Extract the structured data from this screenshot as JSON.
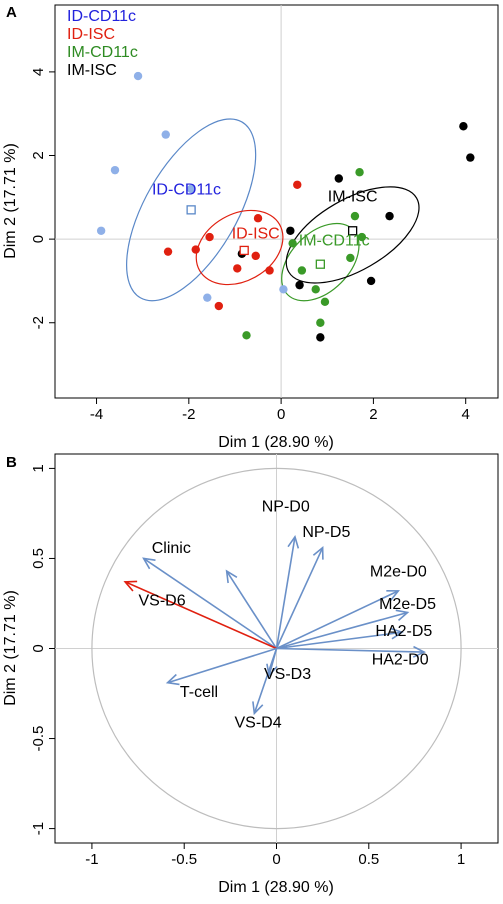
{
  "chart_data": [
    {
      "panel_label": "A",
      "type": "scatter",
      "xlabel": "Dim 1 (28.90 %)",
      "ylabel": "Dim 2 (17.71 %)",
      "xlim": [
        -4.9,
        4.7
      ],
      "ylim": [
        -3.8,
        5.6
      ],
      "xticks": [
        -4,
        -2,
        0,
        2,
        4
      ],
      "yticks": [
        -2,
        0,
        2,
        4
      ],
      "reference_lines": {
        "x": 0,
        "y": 0
      },
      "legend": {
        "placement": "top-left",
        "entries": [
          {
            "label": "ID-CD11c",
            "color": "#2222dd"
          },
          {
            "label": "ID-ISC",
            "color": "#e02010"
          },
          {
            "label": "IM-CD11c",
            "color": "#2e8b22"
          },
          {
            "label": "IM-ISC",
            "color": "#000000"
          }
        ]
      },
      "series": [
        {
          "name": "ID-CD11c",
          "point_color": "#8fb0e8",
          "line_color": "#5a88c8",
          "label_color": "#2222dd",
          "points": [
            [
              -3.1,
              3.9
            ],
            [
              -3.6,
              1.65
            ],
            [
              -3.9,
              0.2
            ],
            [
              -2.5,
              2.5
            ],
            [
              -1.95,
              1.2
            ],
            [
              -1.6,
              -1.4
            ],
            [
              0.05,
              -1.2
            ]
          ],
          "centroid": [
            -1.95,
            0.7
          ],
          "ellipse": {
            "cx": -1.95,
            "cy": 0.7,
            "rx": 2.2,
            "ry": 1.1,
            "angle_deg": 60
          },
          "label": "ID-CD11c",
          "label_pos": [
            -2.05,
            1.07
          ]
        },
        {
          "name": "ID-ISC",
          "point_color": "#e02010",
          "line_color": "#e02010",
          "label_color": "#e02010",
          "points": [
            [
              -1.55,
              0.05
            ],
            [
              -1.35,
              -1.6
            ],
            [
              -0.5,
              0.5
            ],
            [
              -0.55,
              -0.4
            ],
            [
              -1.85,
              -0.25
            ],
            [
              -2.45,
              -0.3
            ],
            [
              -0.25,
              -0.75
            ],
            [
              0.35,
              1.3
            ],
            [
              -0.95,
              -0.7
            ]
          ],
          "centroid": [
            -0.8,
            -0.27
          ],
          "ellipse": {
            "cx": -0.9,
            "cy": -0.2,
            "rx": 1.0,
            "ry": 0.8,
            "angle_deg": 30
          },
          "label": "ID-ISC",
          "label_pos": [
            -0.55,
            0.02
          ]
        },
        {
          "name": "IM-CD11c",
          "point_color": "#3a9a28",
          "line_color": "#3a9a28",
          "label_color": "#3a9a28",
          "points": [
            [
              0.25,
              -0.1
            ],
            [
              1.7,
              1.6
            ],
            [
              1.6,
              0.55
            ],
            [
              1.75,
              0.05
            ],
            [
              1.5,
              -0.45
            ],
            [
              0.45,
              -0.75
            ],
            [
              0.75,
              -1.2
            ],
            [
              0.95,
              -1.5
            ],
            [
              0.85,
              -2.0
            ],
            [
              -0.75,
              -2.3
            ]
          ],
          "centroid": [
            0.85,
            -0.6
          ],
          "ellipse": {
            "cx": 0.85,
            "cy": -0.55,
            "rx": 1.0,
            "ry": 0.7,
            "angle_deg": 45
          },
          "label": "IM-CD11c",
          "label_pos": [
            1.15,
            -0.15
          ]
        },
        {
          "name": "IM-ISC",
          "point_color": "#000000",
          "line_color": "#000000",
          "label_color": "#000000",
          "points": [
            [
              3.95,
              2.7
            ],
            [
              4.1,
              1.95
            ],
            [
              1.25,
              1.45
            ],
            [
              2.35,
              0.55
            ],
            [
              0.2,
              0.2
            ],
            [
              -0.85,
              -0.35
            ],
            [
              0.4,
              -1.1
            ],
            [
              1.95,
              -1.0
            ],
            [
              0.85,
              -2.35
            ]
          ],
          "centroid": [
            1.55,
            0.2
          ],
          "ellipse": {
            "cx": 1.55,
            "cy": 0.1,
            "rx": 1.6,
            "ry": 0.85,
            "angle_deg": 30
          },
          "label": "IM-ISC",
          "label_pos": [
            1.55,
            0.9
          ]
        }
      ]
    },
    {
      "panel_label": "B",
      "type": "correlation-circle",
      "xlabel": "Dim 1 (28.90 %)",
      "ylabel": "Dim 2 (17.71 %)",
      "xlim": [
        -1.2,
        1.2
      ],
      "ylim": [
        -1.08,
        1.08
      ],
      "xticks": [
        -1,
        -0.5,
        0,
        0.5,
        1
      ],
      "yticks": [
        -1,
        -0.5,
        0,
        0.5,
        1
      ],
      "reference_lines": {
        "x": 0,
        "y": 0
      },
      "unit_circle": true,
      "arrow_color": "#6a90c8",
      "highlight_color": "#e02010",
      "variables": [
        {
          "label": "NP-D0",
          "x": 0.1,
          "y": 0.62,
          "label_x": 0.05,
          "label_y": 0.76,
          "highlight": false
        },
        {
          "label": "NP-D5",
          "x": 0.25,
          "y": 0.56,
          "label_x": 0.27,
          "label_y": 0.62,
          "highlight": false
        },
        {
          "label": "M2e-D0",
          "x": 0.66,
          "y": 0.32,
          "label_x": 0.66,
          "label_y": 0.4,
          "highlight": false
        },
        {
          "label": "M2e-D5",
          "x": 0.71,
          "y": 0.2,
          "label_x": 0.71,
          "label_y": 0.22,
          "highlight": false
        },
        {
          "label": "HA2-D5",
          "x": 0.68,
          "y": 0.09,
          "label_x": 0.69,
          "label_y": 0.07,
          "highlight": false
        },
        {
          "label": "HA2-D0",
          "x": 0.8,
          "y": -0.02,
          "label_x": 0.67,
          "label_y": -0.09,
          "highlight": false
        },
        {
          "label": "Clinic",
          "x": -0.72,
          "y": 0.5,
          "label_x": -0.57,
          "label_y": 0.53,
          "highlight": false
        },
        {
          "label": "",
          "x": -0.27,
          "y": 0.43,
          "label_x": 0,
          "label_y": 0,
          "highlight": false
        },
        {
          "label": "VS-D6",
          "x": -0.82,
          "y": 0.37,
          "label_x": -0.62,
          "label_y": 0.24,
          "highlight": true
        },
        {
          "label": "T-cell",
          "x": -0.59,
          "y": -0.19,
          "label_x": -0.42,
          "label_y": -0.27,
          "highlight": false
        },
        {
          "label": "VS-D3",
          "x": -0.04,
          "y": -0.15,
          "label_x": 0.06,
          "label_y": -0.17,
          "highlight": false
        },
        {
          "label": "VS-D4",
          "x": -0.12,
          "y": -0.36,
          "label_x": -0.1,
          "label_y": -0.44,
          "highlight": false
        }
      ]
    }
  ]
}
